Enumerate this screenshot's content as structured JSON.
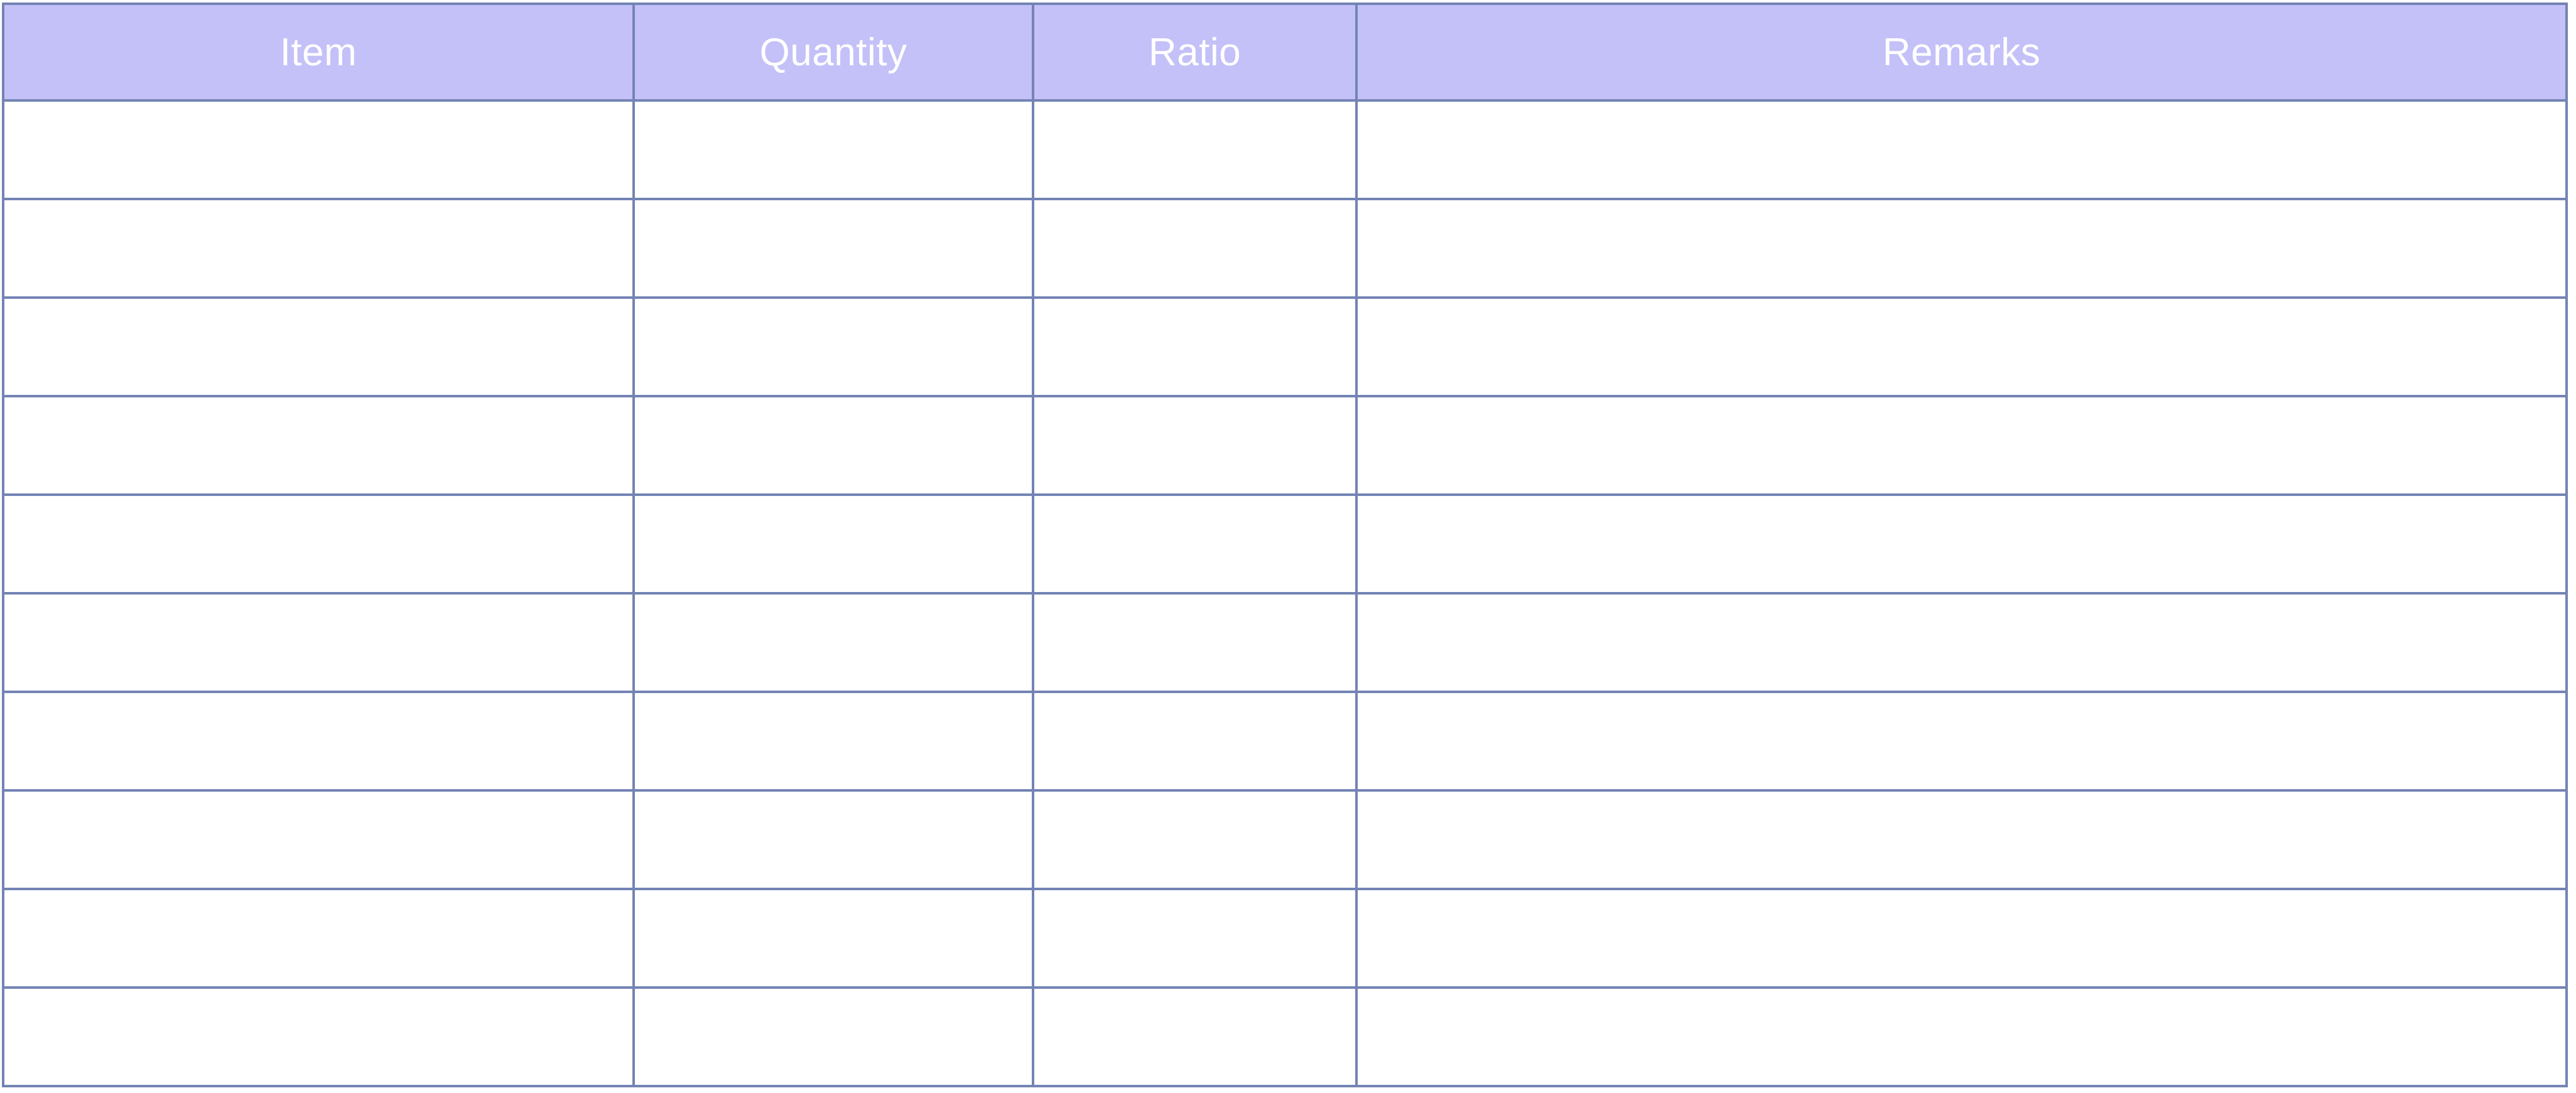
{
  "table": {
    "header_bg": "#c4c1f8",
    "border_color": "#7384b4",
    "header_text_color": "#ffffff",
    "columns": [
      {
        "key": "item",
        "label": "Item"
      },
      {
        "key": "quantity",
        "label": "Quantity"
      },
      {
        "key": "ratio",
        "label": "Ratio"
      },
      {
        "key": "remarks",
        "label": "Remarks"
      }
    ],
    "rows": [
      [
        "",
        "",
        "",
        ""
      ],
      [
        "",
        "",
        "",
        ""
      ],
      [
        "",
        "",
        "",
        ""
      ],
      [
        "",
        "",
        "",
        ""
      ],
      [
        "",
        "",
        "",
        ""
      ],
      [
        "",
        "",
        "",
        ""
      ],
      [
        "",
        "",
        "",
        ""
      ],
      [
        "",
        "",
        "",
        ""
      ],
      [
        "",
        "",
        "",
        ""
      ],
      [
        "",
        "",
        "",
        ""
      ]
    ]
  }
}
